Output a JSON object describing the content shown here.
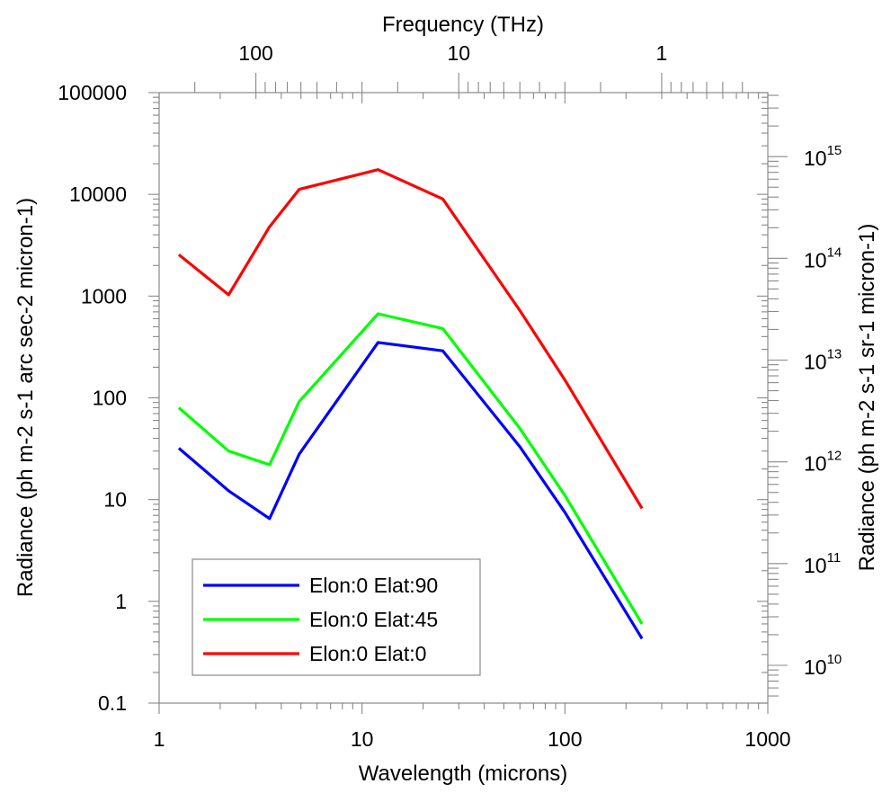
{
  "chart_data": {
    "type": "line",
    "xlabel": "Wavelength (microns)",
    "ylabel": "Radiance (ph m-2 s-1 arc sec-2 micron-1)",
    "x2label": "Frequency (THz)",
    "y2label": "Radiance (ph m-2 s-1 sr-1 micron-1)",
    "x_scale": "log",
    "y_scale": "log",
    "xlim": [
      1,
      1000
    ],
    "ylim": [
      0.1,
      100000
    ],
    "x_ticks": [
      "1",
      "10",
      "100",
      "1000"
    ],
    "y_ticks": [
      "0.1",
      "1",
      "10",
      "100",
      "1000",
      "10000",
      "100000"
    ],
    "x2_ticks": [
      "100",
      "10",
      "1"
    ],
    "y2_ticks": [
      {
        "base": "10",
        "exp": "10"
      },
      {
        "base": "10",
        "exp": "11"
      },
      {
        "base": "10",
        "exp": "12"
      },
      {
        "base": "10",
        "exp": "13"
      },
      {
        "base": "10",
        "exp": "14"
      },
      {
        "base": "10",
        "exp": "15"
      }
    ],
    "grid": false,
    "legend_position": "bottom-left",
    "x": [
      1.25,
      2.2,
      3.5,
      4.9,
      12,
      25,
      60,
      100,
      240
    ],
    "series": [
      {
        "name": "Elon:0 Elat:90",
        "color": "#0000ff",
        "values": [
          32,
          12.2,
          6.5,
          28,
          350,
          290,
          33,
          7.5,
          0.43
        ]
      },
      {
        "name": "Elon:0 Elat:45",
        "color": "#00ff00",
        "values": [
          80,
          30,
          22,
          92,
          670,
          480,
          50,
          11,
          0.6
        ]
      },
      {
        "name": "Elon:0 Elat:0",
        "color": "#ff0000",
        "values": [
          2550,
          1030,
          4800,
          11200,
          17500,
          9000,
          720,
          150,
          8.2
        ]
      }
    ]
  }
}
